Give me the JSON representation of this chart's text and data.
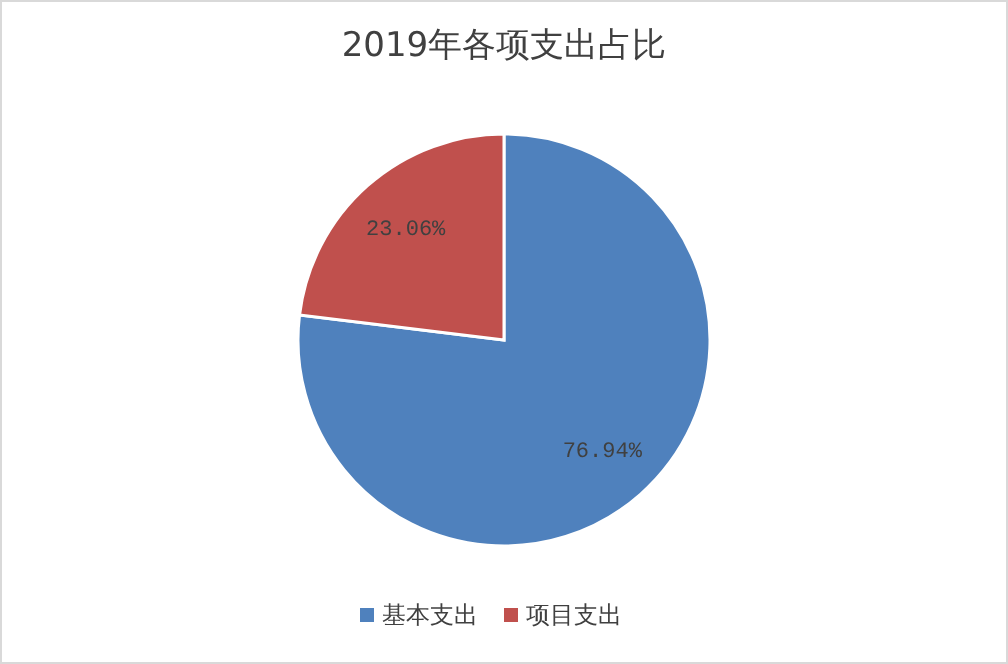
{
  "chart_data": {
    "type": "pie",
    "title": "2019年各项支出占比",
    "categories": [
      "基本支出",
      "项目支出"
    ],
    "values": [
      76.94,
      23.06
    ],
    "colors": [
      "#4f81bd",
      "#c0504d"
    ],
    "value_labels": [
      "76.94%",
      "23.06%"
    ],
    "legend": "bottom"
  }
}
